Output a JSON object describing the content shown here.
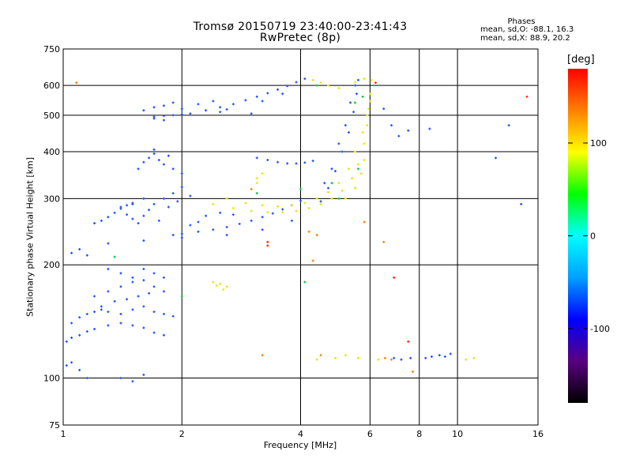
{
  "header": {
    "title_line1": "Tromsø 20150719 23:40:00-23:41:43",
    "title_line2": "RwPretec (8p)",
    "phases_heading": "Phases",
    "phases_o": "mean, sd,O: -88.1, 16.3",
    "phases_x": "mean, sd,X: 88.9, 20.2"
  },
  "colorbar": {
    "unit_label": "[deg]",
    "ticks": [
      "100",
      "0",
      "-100"
    ],
    "range": [
      -180,
      180
    ],
    "colors": [
      "#000000",
      "#5a0080",
      "#0000ff",
      "#00a0ff",
      "#00ffff",
      "#00ff00",
      "#ffff00",
      "#ff8000",
      "#ff0000"
    ]
  },
  "chart_data": {
    "type": "scatter",
    "title": "Tromsø 20150719 23:40:00-23:41:43",
    "subtitle": "RwPretec (8p)",
    "xlabel": "Frequency [MHz]",
    "ylabel": "Stationary phase Virtual Height [km]",
    "x_scale": "log",
    "y_scale": "log",
    "xlim": [
      1,
      16
    ],
    "ylim": [
      75,
      750
    ],
    "x_ticks": [
      "1",
      "2",
      "4",
      "6",
      "8",
      "10",
      "16"
    ],
    "x_tick_values": [
      1,
      2,
      4,
      6,
      8,
      10,
      16
    ],
    "y_ticks": [
      "75",
      "100",
      "200",
      "300",
      "400",
      "500",
      "600",
      "750"
    ],
    "y_tick_values": [
      75,
      100,
      200,
      300,
      400,
      500,
      600,
      750
    ],
    "grid": true,
    "series": [
      {
        "color": "#1e50ff",
        "color_role": "O-mode (~ -100 deg)",
        "points": [
          [
            1.7,
            495
          ],
          [
            1.8,
            498
          ],
          [
            1.9,
            500
          ],
          [
            2.0,
            502
          ],
          [
            2.1,
            505
          ],
          [
            2.3,
            515
          ],
          [
            2.5,
            525
          ],
          [
            2.7,
            535
          ],
          [
            2.9,
            548
          ],
          [
            3.1,
            560
          ],
          [
            3.3,
            572
          ],
          [
            3.5,
            585
          ],
          [
            3.7,
            598
          ],
          [
            3.9,
            612
          ],
          [
            4.1,
            625
          ],
          [
            1.6,
            515
          ],
          [
            1.7,
            525
          ],
          [
            1.8,
            530
          ],
          [
            1.9,
            540
          ],
          [
            2.0,
            520
          ],
          [
            2.2,
            535
          ],
          [
            2.4,
            545
          ],
          [
            1.9,
            240
          ],
          [
            2.0,
            242
          ],
          [
            2.2,
            245
          ],
          [
            2.4,
            248
          ],
          [
            2.6,
            252
          ],
          [
            2.8,
            257
          ],
          [
            3.0,
            262
          ],
          [
            3.2,
            268
          ],
          [
            3.4,
            274
          ],
          [
            3.6,
            281
          ],
          [
            3.8,
            288
          ],
          [
            4.0,
            296
          ],
          [
            1.45,
            272
          ],
          [
            1.5,
            265
          ],
          [
            1.55,
            258
          ],
          [
            1.6,
            270
          ],
          [
            1.65,
            280
          ],
          [
            1.7,
            290
          ],
          [
            1.8,
            300
          ],
          [
            1.9,
            310
          ],
          [
            2.0,
            322
          ],
          [
            2.1,
            305
          ],
          [
            1.75,
            262
          ],
          [
            1.85,
            285
          ],
          [
            1.95,
            295
          ],
          [
            1.6,
            300
          ],
          [
            1.5,
            290
          ],
          [
            1.4,
            285
          ],
          [
            1.2,
            258
          ],
          [
            1.25,
            262
          ],
          [
            1.3,
            268
          ],
          [
            1.35,
            275
          ],
          [
            1.4,
            282
          ],
          [
            1.45,
            288
          ],
          [
            1.5,
            292
          ],
          [
            1.55,
            360
          ],
          [
            1.6,
            375
          ],
          [
            1.65,
            385
          ],
          [
            1.7,
            395
          ],
          [
            1.75,
            380
          ],
          [
            1.8,
            370
          ],
          [
            1.9,
            360
          ],
          [
            2.0,
            350
          ],
          [
            1.85,
            390
          ],
          [
            1.7,
            405
          ],
          [
            3.1,
            385
          ],
          [
            3.3,
            380
          ],
          [
            3.5,
            375
          ],
          [
            3.7,
            372
          ],
          [
            3.9,
            372
          ],
          [
            4.1,
            374
          ],
          [
            4.3,
            378
          ],
          [
            4.5,
            295
          ],
          [
            4.7,
            320
          ],
          [
            4.9,
            355
          ],
          [
            5.1,
            400
          ],
          [
            5.3,
            450
          ],
          [
            5.45,
            510
          ],
          [
            5.55,
            570
          ],
          [
            5.6,
            620
          ],
          [
            4.6,
            330
          ],
          [
            4.8,
            360
          ],
          [
            5.0,
            420
          ],
          [
            5.2,
            470
          ],
          [
            5.35,
            540
          ],
          [
            5.5,
            600
          ],
          [
            1.2,
            165
          ],
          [
            1.3,
            170
          ],
          [
            1.4,
            175
          ],
          [
            1.5,
            180
          ],
          [
            1.6,
            182
          ],
          [
            1.7,
            175
          ],
          [
            1.8,
            170
          ],
          [
            1.25,
            155
          ],
          [
            1.35,
            160
          ],
          [
            1.45,
            162
          ],
          [
            1.55,
            165
          ],
          [
            1.65,
            168
          ],
          [
            1.05,
            140
          ],
          [
            1.1,
            145
          ],
          [
            1.15,
            148
          ],
          [
            1.2,
            150
          ],
          [
            1.25,
            152
          ],
          [
            1.3,
            150
          ],
          [
            1.4,
            148
          ],
          [
            1.5,
            152
          ],
          [
            1.6,
            155
          ],
          [
            1.7,
            150
          ],
          [
            1.8,
            148
          ],
          [
            1.9,
            146
          ],
          [
            1.02,
            125
          ],
          [
            1.05,
            128
          ],
          [
            1.1,
            130
          ],
          [
            1.15,
            133
          ],
          [
            1.2,
            135
          ],
          [
            1.3,
            138
          ],
          [
            1.4,
            140
          ],
          [
            1.5,
            138
          ],
          [
            1.6,
            136
          ],
          [
            1.7,
            132
          ],
          [
            1.8,
            130
          ],
          [
            1.3,
            195
          ],
          [
            1.4,
            190
          ],
          [
            1.5,
            185
          ],
          [
            1.6,
            195
          ],
          [
            1.7,
            190
          ],
          [
            1.8,
            185
          ],
          [
            1.02,
            108
          ],
          [
            1.05,
            110
          ],
          [
            1.1,
            105
          ],
          [
            1.15,
            100
          ],
          [
            1.4,
            100
          ],
          [
            1.5,
            98
          ],
          [
            1.6,
            102
          ],
          [
            1.05,
            215
          ],
          [
            1.1,
            220
          ],
          [
            1.15,
            212
          ],
          [
            8.3,
            113
          ],
          [
            8.6,
            114
          ],
          [
            9.0,
            115
          ],
          [
            9.3,
            114
          ],
          [
            9.6,
            116
          ],
          [
            6.9,
            113
          ],
          [
            7.2,
            112
          ],
          [
            7.6,
            113
          ],
          [
            1.3,
            228
          ],
          [
            1.6,
            232
          ],
          [
            2.0,
            236
          ],
          [
            2.6,
            240
          ],
          [
            3.2,
            248
          ],
          [
            3.8,
            262
          ],
          [
            2.1,
            255
          ],
          [
            2.2,
            260
          ],
          [
            2.3,
            270
          ],
          [
            2.5,
            275
          ],
          [
            2.7,
            272
          ],
          [
            1.7,
            490
          ],
          [
            1.8,
            485
          ],
          [
            2.5,
            510
          ],
          [
            2.6,
            518
          ],
          [
            3.2,
            545
          ],
          [
            3.6,
            570
          ],
          [
            3.0,
            505
          ],
          [
            6.5,
            520
          ],
          [
            6.8,
            470
          ],
          [
            7.5,
            455
          ],
          [
            12.5,
            385
          ],
          [
            13.5,
            470
          ],
          [
            14.5,
            290
          ],
          [
            8.5,
            460
          ],
          [
            7.1,
            440
          ]
        ]
      },
      {
        "color": "#e6e600",
        "color_role": "X-mode (~ +90 deg)",
        "points": [
          [
            2.4,
            290
          ],
          [
            2.7,
            283
          ],
          [
            3.0,
            278
          ],
          [
            3.3,
            276
          ],
          [
            3.6,
            276
          ],
          [
            3.9,
            278
          ],
          [
            4.2,
            283
          ],
          [
            4.5,
            290
          ],
          [
            4.8,
            300
          ],
          [
            5.1,
            315
          ],
          [
            5.4,
            340
          ],
          [
            5.6,
            370
          ],
          [
            5.8,
            420
          ],
          [
            5.9,
            470
          ],
          [
            5.95,
            520
          ],
          [
            6.0,
            570
          ],
          [
            6.05,
            620
          ],
          [
            2.6,
            300
          ],
          [
            2.9,
            292
          ],
          [
            3.2,
            288
          ],
          [
            3.5,
            286
          ],
          [
            3.8,
            288
          ],
          [
            4.1,
            292
          ],
          [
            4.4,
            300
          ],
          [
            4.7,
            312
          ],
          [
            5.0,
            330
          ],
          [
            5.3,
            360
          ],
          [
            5.5,
            400
          ],
          [
            5.75,
            450
          ],
          [
            5.9,
            500
          ],
          [
            6.0,
            545
          ],
          [
            3.1,
            340
          ],
          [
            3.2,
            350
          ],
          [
            3.1,
            330
          ],
          [
            5.2,
            300
          ],
          [
            5.5,
            320
          ],
          [
            5.7,
            350
          ],
          [
            5.8,
            380
          ],
          [
            2.4,
            180
          ],
          [
            2.5,
            178
          ],
          [
            2.6,
            175
          ],
          [
            2.55,
            172
          ],
          [
            2.45,
            176
          ],
          [
            4.4,
            112
          ],
          [
            4.9,
            113
          ],
          [
            5.2,
            115
          ],
          [
            5.6,
            113
          ],
          [
            6.3,
            112
          ],
          [
            10.5,
            112
          ],
          [
            11.0,
            113
          ],
          [
            4.3,
            620
          ],
          [
            4.5,
            610
          ],
          [
            4.7,
            600
          ],
          [
            5.0,
            590
          ],
          [
            5.5,
            612
          ],
          [
            5.8,
            625
          ]
        ]
      },
      {
        "color": "#00cc33",
        "color_role": "near 0 deg",
        "points": [
          [
            4.4,
            600
          ],
          [
            5.5,
            540
          ],
          [
            5.75,
            560
          ],
          [
            3.1,
            310
          ],
          [
            1.35,
            210
          ],
          [
            4.1,
            180
          ],
          [
            2.0,
            165
          ],
          [
            4.8,
            330
          ],
          [
            5.0,
            300
          ],
          [
            5.6,
            360
          ],
          [
            4.0,
            318
          ]
        ]
      },
      {
        "color": "#ff7f00",
        "color_role": "~ +150 deg",
        "points": [
          [
            1.08,
            610
          ],
          [
            3.0,
            318
          ],
          [
            4.3,
            205
          ],
          [
            4.5,
            115
          ],
          [
            6.55,
            113
          ],
          [
            6.8,
            112
          ],
          [
            7.7,
            104
          ],
          [
            3.2,
            115
          ],
          [
            4.4,
            240
          ],
          [
            4.2,
            245
          ],
          [
            5.8,
            260
          ],
          [
            6.5,
            230
          ]
        ]
      },
      {
        "color": "#ff2a00",
        "color_role": "~ +180 deg",
        "points": [
          [
            15.0,
            560
          ],
          [
            3.3,
            225
          ],
          [
            3.3,
            230
          ],
          [
            6.2,
            610
          ],
          [
            6.9,
            185
          ],
          [
            7.5,
            125
          ]
        ]
      }
    ]
  }
}
